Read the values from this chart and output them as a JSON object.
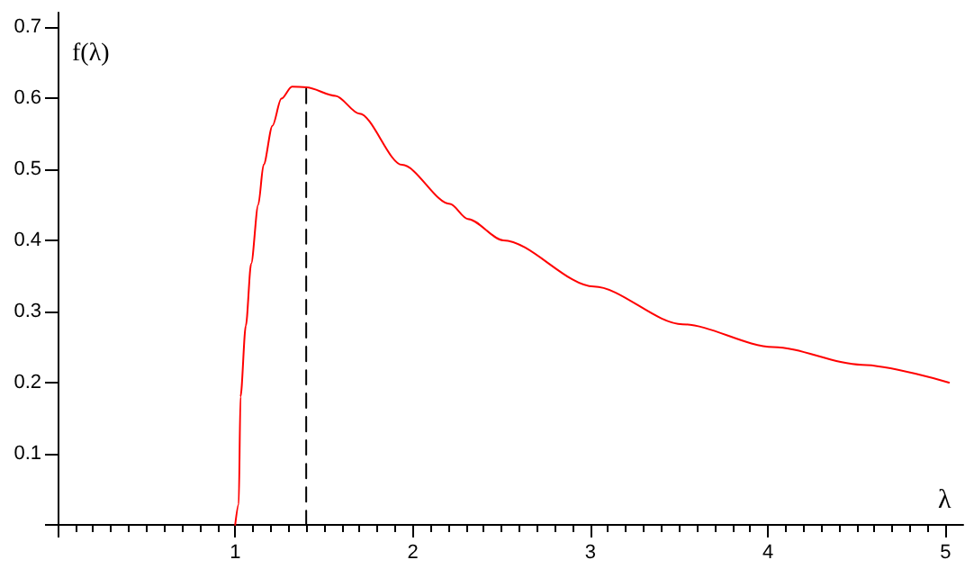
{
  "chart_data": {
    "type": "line",
    "xlabel": "λ",
    "ylabel": "f(λ)",
    "xlim": [
      0,
      5.1
    ],
    "ylim": [
      0,
      0.72
    ],
    "xticks": [
      {
        "value": 0,
        "label": null
      },
      1,
      2,
      3,
      4,
      5
    ],
    "yticks": [
      {
        "value": 0,
        "label": null
      },
      0.1,
      0.2,
      0.3,
      0.4,
      0.5,
      0.6,
      0.7
    ],
    "marker": "none",
    "series": [
      {
        "color": "#ff0000",
        "line_style": "solid",
        "x": [
          1.0,
          1.02,
          1.03,
          1.06,
          1.09,
          1.13,
          1.16,
          1.21,
          1.26,
          1.32,
          1.4,
          1.565,
          1.7,
          1.94,
          2.21,
          2.31,
          2.51,
          3.02,
          3.52,
          4.03,
          4.53,
          5.02
        ],
        "values": [
          0,
          0.029,
          0.18,
          0.28,
          0.367,
          0.45,
          0.506,
          0.561,
          0.599,
          0.616,
          0.615,
          0.603,
          0.578,
          0.506,
          0.451,
          0.43,
          0.4,
          0.335,
          0.282,
          0.25,
          0.225,
          0.2
        ]
      },
      {
        "type": "line",
        "color": "#000000",
        "line_style": "dashed",
        "x": [
          1.4,
          1.4
        ],
        "values": [
          0,
          0.615
        ]
      }
    ]
  }
}
